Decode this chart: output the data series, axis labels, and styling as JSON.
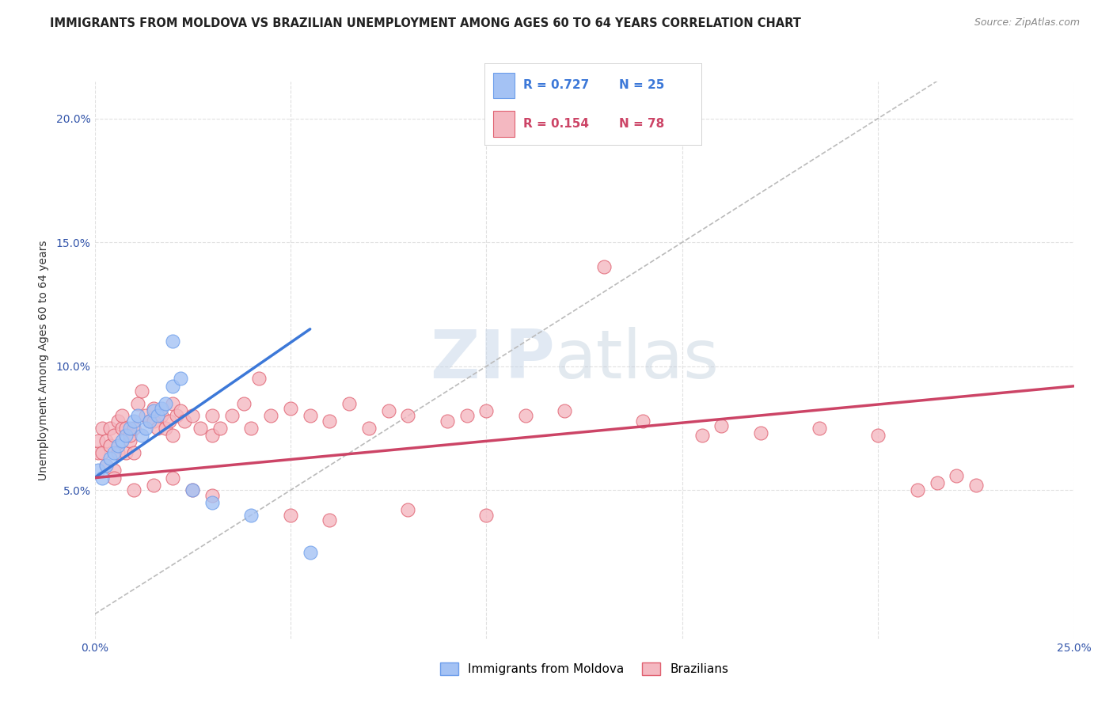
{
  "title": "IMMIGRANTS FROM MOLDOVA VS BRAZILIAN UNEMPLOYMENT AMONG AGES 60 TO 64 YEARS CORRELATION CHART",
  "source": "Source: ZipAtlas.com",
  "ylabel": "Unemployment Among Ages 60 to 64 years",
  "xlim": [
    0.0,
    0.25
  ],
  "ylim": [
    -0.01,
    0.215
  ],
  "legend_labels": [
    "Immigrants from Moldova",
    "Brazilians"
  ],
  "moldova_color": "#a4c2f4",
  "brazil_color": "#f4b8c1",
  "moldova_edge_color": "#6d9eeb",
  "brazil_edge_color": "#e06070",
  "moldova_line_color": "#3c78d8",
  "brazil_line_color": "#cc4466",
  "moldova_R": 0.727,
  "moldova_N": 25,
  "brazil_R": 0.154,
  "brazil_N": 78,
  "moldova_scatter_x": [
    0.001,
    0.002,
    0.003,
    0.004,
    0.005,
    0.006,
    0.007,
    0.008,
    0.009,
    0.01,
    0.011,
    0.012,
    0.013,
    0.014,
    0.015,
    0.016,
    0.017,
    0.018,
    0.02,
    0.022,
    0.025,
    0.03,
    0.04,
    0.055,
    0.02
  ],
  "moldova_scatter_y": [
    0.058,
    0.055,
    0.06,
    0.063,
    0.065,
    0.068,
    0.07,
    0.072,
    0.075,
    0.078,
    0.08,
    0.072,
    0.075,
    0.078,
    0.082,
    0.08,
    0.083,
    0.085,
    0.092,
    0.095,
    0.05,
    0.045,
    0.04,
    0.025,
    0.11
  ],
  "brazil_scatter_x": [
    0.001,
    0.001,
    0.002,
    0.002,
    0.003,
    0.003,
    0.004,
    0.004,
    0.005,
    0.005,
    0.006,
    0.006,
    0.007,
    0.007,
    0.008,
    0.008,
    0.009,
    0.009,
    0.01,
    0.01,
    0.011,
    0.012,
    0.013,
    0.014,
    0.015,
    0.015,
    0.016,
    0.017,
    0.018,
    0.019,
    0.02,
    0.02,
    0.021,
    0.022,
    0.023,
    0.025,
    0.027,
    0.03,
    0.03,
    0.032,
    0.035,
    0.038,
    0.04,
    0.042,
    0.045,
    0.05,
    0.055,
    0.06,
    0.065,
    0.07,
    0.075,
    0.08,
    0.09,
    0.095,
    0.1,
    0.11,
    0.12,
    0.13,
    0.14,
    0.155,
    0.16,
    0.17,
    0.185,
    0.2,
    0.21,
    0.215,
    0.22,
    0.225,
    0.005,
    0.01,
    0.015,
    0.02,
    0.025,
    0.03,
    0.05,
    0.06,
    0.08,
    0.1
  ],
  "brazil_scatter_y": [
    0.065,
    0.07,
    0.065,
    0.075,
    0.06,
    0.07,
    0.075,
    0.068,
    0.058,
    0.072,
    0.078,
    0.065,
    0.075,
    0.08,
    0.065,
    0.075,
    0.07,
    0.072,
    0.065,
    0.075,
    0.085,
    0.09,
    0.08,
    0.078,
    0.078,
    0.083,
    0.075,
    0.08,
    0.075,
    0.078,
    0.072,
    0.085,
    0.08,
    0.082,
    0.078,
    0.08,
    0.075,
    0.08,
    0.072,
    0.075,
    0.08,
    0.085,
    0.075,
    0.095,
    0.08,
    0.083,
    0.08,
    0.078,
    0.085,
    0.075,
    0.082,
    0.08,
    0.078,
    0.08,
    0.082,
    0.08,
    0.082,
    0.14,
    0.078,
    0.072,
    0.076,
    0.073,
    0.075,
    0.072,
    0.05,
    0.053,
    0.056,
    0.052,
    0.055,
    0.05,
    0.052,
    0.055,
    0.05,
    0.048,
    0.04,
    0.038,
    0.042,
    0.04
  ],
  "watermark_zip": "ZIP",
  "watermark_atlas": "atlas",
  "background_color": "#ffffff",
  "grid_color": "#e0e0e0",
  "diagonal_color": "#bbbbbb"
}
